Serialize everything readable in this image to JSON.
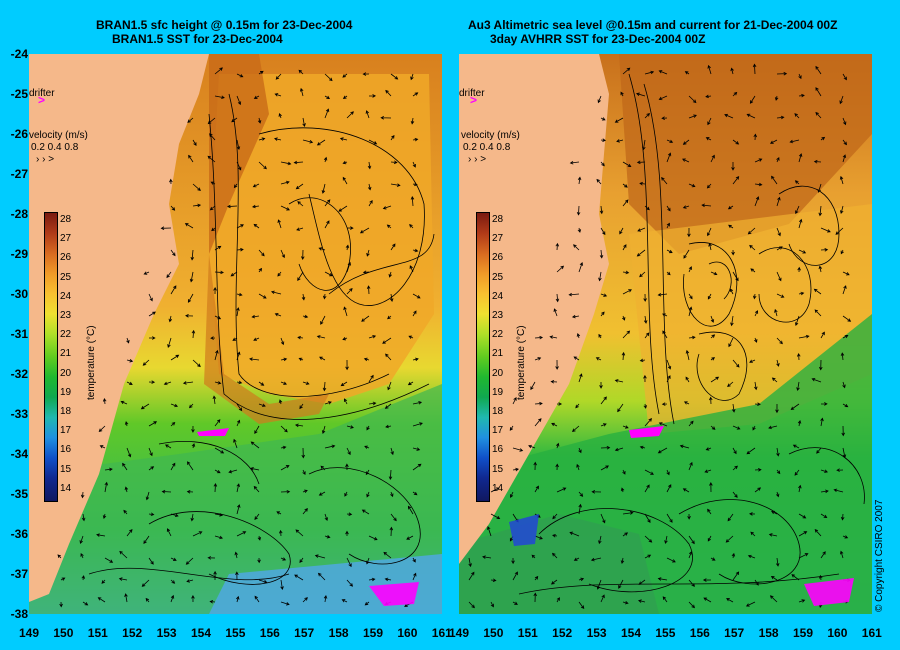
{
  "left_panel": {
    "title_line1": "BRAN1.5 sfc height @ 0.15m for 23-Dec-2004",
    "title_line2": "BRAN1.5 SST for 23-Dec-2004",
    "drifter_label": "drifter",
    "velocity_label": "velocity (m/s)",
    "velocity_scale": "0.2 0.4 0.8",
    "colorbar_title": "temperature (°C)"
  },
  "right_panel": {
    "title_line1": "Au3 Altimetric sea level  @0.15m and current for 21-Dec-2004 00Z",
    "title_line2": "3day AVHRR SST for 23-Dec-2004 00Z",
    "drifter_label": "drifter",
    "velocity_label": "velocity (m/s)",
    "velocity_scale": "0.2 0.4 0.8",
    "colorbar_title": "temperature (°C)"
  },
  "copyright": "© Copyright CSIRO 2007",
  "axes": {
    "lat_ticks": [
      "-24",
      "-25",
      "-26",
      "-27",
      "-28",
      "-29",
      "-30",
      "-31",
      "-32",
      "-33",
      "-34",
      "-35",
      "-36",
      "-37",
      "-38"
    ],
    "lon_ticks": [
      "149",
      "150",
      "151",
      "152",
      "153",
      "154",
      "155",
      "156",
      "157",
      "158",
      "159",
      "160",
      "161"
    ],
    "lon_ticks_right": [
      "149",
      "150",
      "151",
      "152",
      "153",
      "154",
      "155",
      "156",
      "157",
      "158",
      "159",
      "160",
      "161"
    ]
  },
  "colorbar_ticks": [
    "28",
    "27",
    "26",
    "25",
    "24",
    "23",
    "22",
    "21",
    "20",
    "19",
    "18",
    "17",
    "16",
    "15",
    "14"
  ],
  "colors": {
    "background": "#00ccff",
    "land": "#f5b88a",
    "drifter": "#ff00ff"
  }
}
